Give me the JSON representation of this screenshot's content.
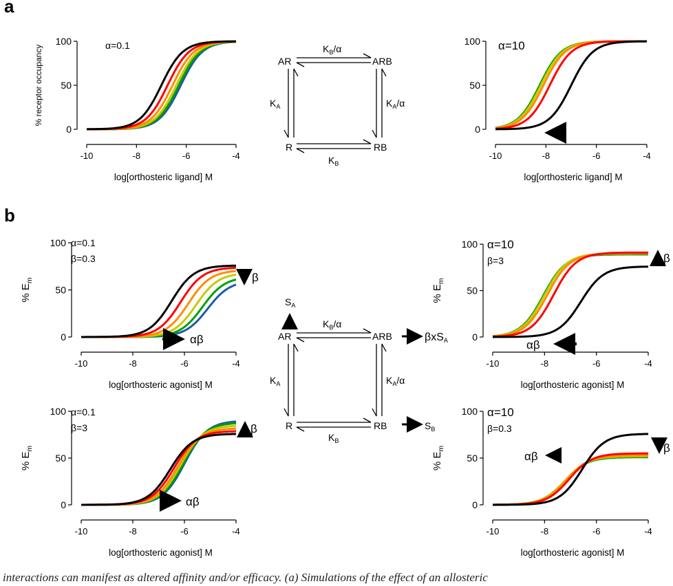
{
  "panels": {
    "a_label": "a",
    "b_label": "b"
  },
  "schemes": {
    "a": {
      "AR": "AR",
      "ARB": "ARB",
      "R": "R",
      "RB": "RB",
      "top_K": "K",
      "top_sub": "B",
      "top_suffix": "/α",
      "left_K": "K",
      "left_sub": "A",
      "right_K": "K",
      "right_sub": "A",
      "right_suffix": "/α",
      "bottom_K": "K",
      "bottom_sub": "B"
    },
    "b": {
      "AR": "AR",
      "ARB": "ARB",
      "R": "R",
      "RB": "RB",
      "top_K": "K",
      "top_sub": "B",
      "top_suffix": "/α",
      "left_K": "K",
      "left_sub": "A",
      "right_K": "K",
      "right_sub": "A",
      "right_suffix": "/α",
      "bottom_K": "K",
      "bottom_sub": "B",
      "SA_S": "S",
      "SA_sub": "A",
      "ARB_out": "βxS",
      "ARB_out_sub": "A",
      "RB_out": "S",
      "RB_out_sub": "B"
    }
  },
  "chart_data": [
    {
      "id": "a-left",
      "type": "line",
      "ylabel": "% receptor occupancy",
      "xlabel": "log[orthosteric ligand] M",
      "xlim": [
        -10,
        -4
      ],
      "ylim": [
        0,
        100
      ],
      "xticks": [
        -10,
        -8,
        -6,
        -4
      ],
      "yticks": [
        0,
        50,
        100
      ],
      "annotations": [
        "α=0.1"
      ],
      "series": [
        {
          "color": "#000000",
          "top": 100,
          "ec50": -7.0,
          "hill": 1
        },
        {
          "color": "#ff0000",
          "top": 100,
          "ec50": -6.75,
          "hill": 1
        },
        {
          "color": "#ff8c00",
          "top": 100,
          "ec50": -6.55,
          "hill": 1
        },
        {
          "color": "#c8c800",
          "top": 100,
          "ec50": -6.4,
          "hill": 1
        },
        {
          "color": "#00a000",
          "top": 100,
          "ec50": -6.3,
          "hill": 1
        },
        {
          "color": "#1e5aa8",
          "top": 100,
          "ec50": -6.22,
          "hill": 1
        }
      ]
    },
    {
      "id": "a-right",
      "type": "line",
      "ylabel": "",
      "xlabel": "log[orthosteric ligand] M",
      "xlim": [
        -10,
        -4
      ],
      "ylim": [
        0,
        100
      ],
      "xticks": [
        -10,
        -8,
        -6,
        -4
      ],
      "yticks": [
        0,
        50,
        100
      ],
      "annotations": [
        "α=10"
      ],
      "series": [
        {
          "color": "#000000",
          "top": 100,
          "ec50": -7.0,
          "hill": 1
        },
        {
          "color": "#ff0000",
          "top": 100,
          "ec50": -7.85,
          "hill": 1
        },
        {
          "color": "#ff8c00",
          "top": 100,
          "ec50": -8.1,
          "hill": 1
        },
        {
          "color": "#c8c800",
          "top": 100,
          "ec50": -8.2,
          "hill": 1
        },
        {
          "color": "#00a000",
          "top": 100,
          "ec50": -8.25,
          "hill": 1
        }
      ]
    },
    {
      "id": "b-top-left",
      "type": "line",
      "ylabel": "% E",
      "ylabel_sub": "m",
      "xlabel": "log[orthosteric agonist] M",
      "xlim": [
        -10,
        -4
      ],
      "ylim": [
        0,
        100
      ],
      "xticks": [
        -10,
        -8,
        -6,
        -4
      ],
      "yticks": [
        0,
        50,
        100
      ],
      "annotations": [
        "α=0.1",
        "β=0.3",
        "β",
        "αβ"
      ],
      "series": [
        {
          "color": "#000000",
          "top": 76,
          "ec50": -6.5,
          "hill": 1
        },
        {
          "color": "#ff0000",
          "top": 74,
          "ec50": -6.15,
          "hill": 1
        },
        {
          "color": "#ff8c00",
          "top": 71,
          "ec50": -5.85,
          "hill": 1
        },
        {
          "color": "#c8c800",
          "top": 68,
          "ec50": -5.55,
          "hill": 1
        },
        {
          "color": "#00a000",
          "top": 64,
          "ec50": -5.3,
          "hill": 1
        },
        {
          "color": "#1e5aa8",
          "top": 60,
          "ec50": -5.1,
          "hill": 1
        }
      ]
    },
    {
      "id": "b-top-right",
      "type": "line",
      "ylabel": "% E",
      "ylabel_sub": "m",
      "xlabel": "log[orthosteric agonist] M",
      "xlim": [
        -10,
        -4
      ],
      "ylim": [
        0,
        100
      ],
      "xticks": [
        -10,
        -8,
        -6,
        -4
      ],
      "yticks": [
        0,
        50,
        100
      ],
      "annotations": [
        "α=10",
        "β=3",
        "β",
        "αβ"
      ],
      "series": [
        {
          "color": "#000000",
          "top": 76,
          "ec50": -6.6,
          "hill": 1
        },
        {
          "color": "#ff0000",
          "top": 91,
          "ec50": -7.65,
          "hill": 1
        },
        {
          "color": "#ff8c00",
          "top": 90,
          "ec50": -7.9,
          "hill": 1
        },
        {
          "color": "#c8c800",
          "top": 90,
          "ec50": -8.0,
          "hill": 1
        },
        {
          "color": "#00a000",
          "top": 89,
          "ec50": -8.05,
          "hill": 1
        }
      ]
    },
    {
      "id": "b-bottom-left",
      "type": "line",
      "ylabel": "% E",
      "ylabel_sub": "m",
      "xlabel": "log[orthosteric agonist] M",
      "xlim": [
        -10,
        -4
      ],
      "ylim": [
        0,
        100
      ],
      "xticks": [
        -10,
        -8,
        -6,
        -4
      ],
      "yticks": [
        0,
        50,
        100
      ],
      "annotations": [
        "α=0.1",
        "β=3",
        "β",
        "αβ"
      ],
      "series": [
        {
          "color": "#000000",
          "top": 76,
          "ec50": -6.55,
          "hill": 1
        },
        {
          "color": "#ff0000",
          "top": 79,
          "ec50": -6.4,
          "hill": 1
        },
        {
          "color": "#ff8c00",
          "top": 82,
          "ec50": -6.25,
          "hill": 1
        },
        {
          "color": "#c8c800",
          "top": 85,
          "ec50": -6.15,
          "hill": 1
        },
        {
          "color": "#00a000",
          "top": 88,
          "ec50": -6.05,
          "hill": 1
        },
        {
          "color": "#1e5aa8",
          "top": 90,
          "ec50": -5.98,
          "hill": 1
        }
      ]
    },
    {
      "id": "b-bottom-right",
      "type": "line",
      "ylabel": "% E",
      "ylabel_sub": "m",
      "xlabel": "log[orthosteric agonist] M",
      "xlim": [
        -10,
        -4
      ],
      "ylim": [
        0,
        100
      ],
      "xticks": [
        -10,
        -8,
        -6,
        -4
      ],
      "yticks": [
        0,
        50,
        100
      ],
      "annotations": [
        "α=10",
        "β=0.3",
        "β",
        "αβ"
      ],
      "series": [
        {
          "color": "#000000",
          "top": 76,
          "ec50": -6.55,
          "hill": 1
        },
        {
          "color": "#ff0000",
          "top": 55,
          "ec50": -7.05,
          "hill": 1
        },
        {
          "color": "#ff8c00",
          "top": 53,
          "ec50": -7.15,
          "hill": 1
        },
        {
          "color": "#c8c800",
          "top": 52,
          "ec50": -7.2,
          "hill": 1
        },
        {
          "color": "#00a000",
          "top": 51,
          "ec50": -7.22,
          "hill": 1
        }
      ]
    }
  ],
  "caption": "interactions can manifest as altered affinity and/or efficacy. (a) Simulations of the effect of an allosteric"
}
